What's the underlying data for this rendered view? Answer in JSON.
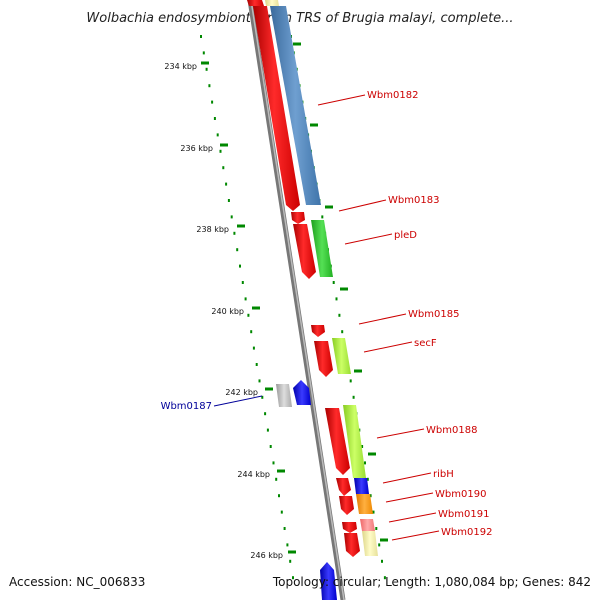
{
  "title": "Wolbachia endosymbiont strain TRS of Brugia malayi, complete...",
  "footer": {
    "accession": "Accession: NC_006833",
    "topology": "Topology: circular; Length: 1,080,084 bp; Genes: 842"
  },
  "ticks": [
    {
      "label": "234 kbp"
    },
    {
      "label": "236 kbp"
    },
    {
      "label": "238 kbp"
    },
    {
      "label": "240 kbp"
    },
    {
      "label": "242 kbp"
    },
    {
      "label": "244 kbp"
    },
    {
      "label": "246 kbp"
    }
  ],
  "genes": [
    {
      "label": "Wbm0182",
      "color": "#cc0000"
    },
    {
      "label": "Wbm0183",
      "color": "#cc0000"
    },
    {
      "label": "pleD",
      "color": "#cc0000"
    },
    {
      "label": "Wbm0185",
      "color": "#cc0000"
    },
    {
      "label": "secF",
      "color": "#cc0000"
    },
    {
      "label": "Wbm0187",
      "color": "#000099"
    },
    {
      "label": "Wbm0188",
      "color": "#cc0000"
    },
    {
      "label": "ribH",
      "color": "#cc0000"
    },
    {
      "label": "Wbm0190",
      "color": "#cc0000"
    },
    {
      "label": "Wbm0191",
      "color": "#cc0000"
    },
    {
      "label": "Wbm0192",
      "color": "#cc0000"
    }
  ],
  "colors": {
    "forward_strand": "#ff0000",
    "reverse_strand": "#0000ff",
    "backbone": "#8a8a8a",
    "tick": "#008800",
    "cog_blue": "#4f82b8",
    "cog_green": "#33cc33",
    "cog_lime": "#aaee33",
    "cog_orange": "#ff9900",
    "cog_pink": "#ff8888",
    "cog_cream": "#eeeeaa",
    "cog_grey": "#bbbbbb"
  }
}
